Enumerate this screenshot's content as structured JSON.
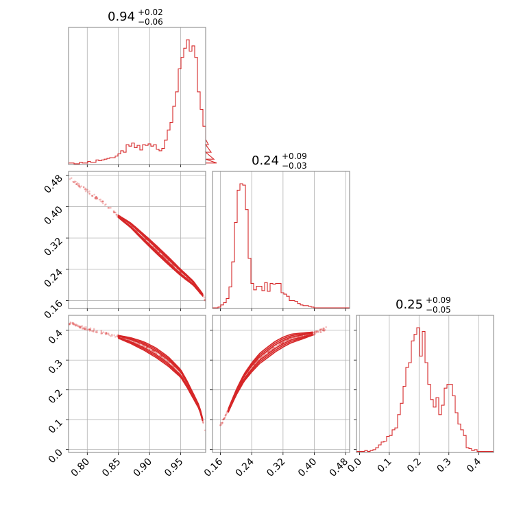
{
  "colors": {
    "series": "#d62728",
    "frame": "#808080",
    "grid": "#b0b0b0"
  },
  "chart_data": {
    "type": "corner",
    "grid": true,
    "parameters": [
      {
        "title": {
          "median": "0.94",
          "plus": "+0.02",
          "minus": "−0.06"
        },
        "range": [
          0.77,
          0.99
        ],
        "ticks": [
          0.8,
          0.85,
          0.9,
          0.95
        ],
        "tick_labels": [
          "0.80",
          "0.85",
          "0.90",
          "0.95"
        ],
        "hist": {
          "start": 0.77,
          "width": 0.0044,
          "counts": [
            2,
            2,
            1,
            1,
            3,
            2,
            2,
            4,
            3,
            3,
            6,
            5,
            6,
            7,
            8,
            9,
            9,
            11,
            14,
            18,
            16,
            26,
            24,
            28,
            22,
            25,
            19,
            26,
            25,
            27,
            24,
            26,
            20,
            18,
            21,
            32,
            45,
            55,
            76,
            95,
            125,
            140,
            152,
            163,
            148,
            155,
            140,
            95,
            72,
            50,
            33,
            26,
            16,
            7,
            2
          ]
        }
      },
      {
        "title": {
          "median": "0.24",
          "plus": "+0.09",
          "minus": "−0.03"
        },
        "range": [
          0.14,
          0.49
        ],
        "ticks": [
          0.16,
          0.24,
          0.32,
          0.4,
          0.48
        ],
        "tick_labels": [
          "0.16",
          "0.24",
          "0.32",
          "0.40",
          "0.48"
        ],
        "hist": {
          "start": 0.14,
          "width": 0.007,
          "counts": [
            1,
            1,
            2,
            5,
            8,
            14,
            30,
            65,
            120,
            165,
            174,
            172,
            138,
            70,
            35,
            26,
            31,
            31,
            25,
            36,
            24,
            35,
            34,
            35,
            35,
            22,
            20,
            17,
            11,
            11,
            10,
            7,
            5,
            4,
            4,
            3,
            2,
            1,
            1,
            1,
            1,
            1,
            1,
            1,
            1,
            1,
            1,
            1,
            1,
            1
          ]
        }
      },
      {
        "title": {
          "median": "0.25",
          "plus": "+0.09",
          "minus": "−0.05"
        },
        "range": [
          -0.01,
          0.45
        ],
        "ticks": [
          0.0,
          0.1,
          0.2,
          0.3,
          0.4
        ],
        "tick_labels": [
          "0.0",
          "0.1",
          "0.2",
          "0.3",
          "0.4"
        ],
        "hist": {
          "start": -0.01,
          "width": 0.0092,
          "counts": [
            1,
            1,
            1,
            2,
            1,
            2,
            3,
            5,
            8,
            11,
            12,
            17,
            18,
            24,
            26,
            40,
            52,
            70,
            90,
            95,
            118,
            125,
            132,
            102,
            128,
            95,
            72,
            56,
            48,
            58,
            40,
            50,
            68,
            72,
            72,
            60,
            42,
            30,
            24,
            18,
            5,
            4,
            2,
            3,
            1,
            1,
            1,
            1,
            1,
            1
          ]
        }
      }
    ],
    "joint": [
      {
        "x_param": 0,
        "y_param": 1,
        "ridge": [
          [
            0.77,
            0.475
          ],
          [
            0.8,
            0.44
          ],
          [
            0.83,
            0.405
          ],
          [
            0.85,
            0.375
          ],
          [
            0.87,
            0.352
          ],
          [
            0.89,
            0.322
          ],
          [
            0.91,
            0.292
          ],
          [
            0.93,
            0.262
          ],
          [
            0.95,
            0.232
          ],
          [
            0.97,
            0.205
          ],
          [
            0.985,
            0.175
          ],
          [
            0.99,
            0.16
          ]
        ],
        "contour_range": [
          0.85,
          0.985
        ],
        "widths": [
          0.01,
          0.007,
          0.004
        ]
      },
      {
        "x_param": 0,
        "y_param": 2,
        "ridge": [
          [
            0.77,
            0.425
          ],
          [
            0.8,
            0.405
          ],
          [
            0.83,
            0.39
          ],
          [
            0.85,
            0.378
          ],
          [
            0.87,
            0.365
          ],
          [
            0.89,
            0.348
          ],
          [
            0.91,
            0.325
          ],
          [
            0.93,
            0.295
          ],
          [
            0.95,
            0.255
          ],
          [
            0.96,
            0.22
          ],
          [
            0.97,
            0.18
          ],
          [
            0.98,
            0.14
          ],
          [
            0.99,
            0.06
          ]
        ],
        "contour_range": [
          0.85,
          0.985
        ],
        "widths": [
          0.016,
          0.011,
          0.006
        ]
      },
      {
        "x_param": 1,
        "y_param": 2,
        "ridge": [
          [
            0.16,
            0.08
          ],
          [
            0.18,
            0.13
          ],
          [
            0.2,
            0.19
          ],
          [
            0.22,
            0.24
          ],
          [
            0.24,
            0.275
          ],
          [
            0.26,
            0.305
          ],
          [
            0.28,
            0.325
          ],
          [
            0.3,
            0.345
          ],
          [
            0.32,
            0.36
          ],
          [
            0.34,
            0.372
          ],
          [
            0.36,
            0.378
          ],
          [
            0.38,
            0.384
          ],
          [
            0.4,
            0.39
          ],
          [
            0.43,
            0.405
          ]
        ],
        "contour_range": [
          0.18,
          0.395
        ],
        "widths": [
          0.018,
          0.012,
          0.006
        ]
      }
    ]
  }
}
